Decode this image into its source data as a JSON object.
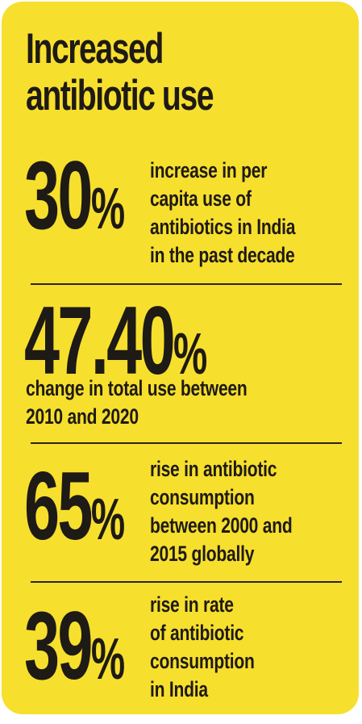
{
  "title": "Increased\nantibiotic use",
  "stats": [
    {
      "number": "30",
      "percent": "%",
      "description": "increase in per\ncapita use of\nantibiotics in India\nin the past decade"
    },
    {
      "number": "47.40",
      "percent": "%",
      "description": "change in total use between\n2010 and 2020"
    },
    {
      "number": "65",
      "percent": "%",
      "description": "rise in antibiotic\nconsumption\nbetween 2000 and\n2015 globally"
    },
    {
      "number": "39",
      "percent": "%",
      "description": "rise in rate\nof antibiotic\nconsumption\nin India"
    }
  ],
  "colors": {
    "background": "#f7df2e",
    "text": "#1e1a15",
    "divider": "#2a251f"
  }
}
